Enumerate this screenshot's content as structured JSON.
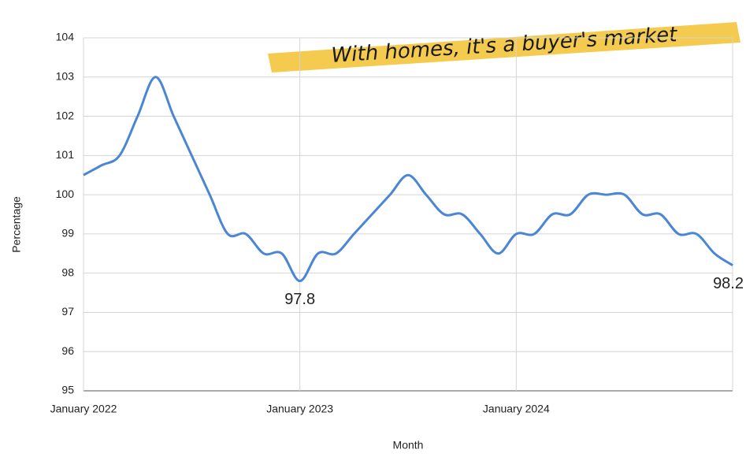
{
  "chart_data": {
    "type": "line",
    "annotation": "With homes, it's a buyer's market",
    "x_label": "Month",
    "y_label": "Percentage",
    "categories": [
      "January 2022",
      null,
      null,
      null,
      null,
      null,
      null,
      null,
      null,
      null,
      null,
      null,
      "January 2023",
      null,
      null,
      null,
      null,
      null,
      null,
      null,
      null,
      null,
      null,
      null,
      "January 2024",
      null,
      null,
      null,
      null,
      null,
      null,
      null,
      null,
      null,
      null,
      null,
      null
    ],
    "series": [
      {
        "color": "#4a86d4",
        "values": [
          100.5,
          100.75,
          101,
          102,
          103,
          102,
          101,
          100,
          99,
          99,
          98.5,
          98.5,
          97.8,
          98.5,
          98.5,
          99,
          99.5,
          100,
          100.5,
          100,
          99.5,
          99.5,
          99,
          98.5,
          99,
          99,
          99.5,
          99.5,
          100,
          100,
          100,
          99.5,
          99.5,
          99,
          99,
          98.5,
          98.2
        ]
      }
    ],
    "labeled_points": [
      12,
      36
    ],
    "ylim": [
      95,
      104
    ],
    "yticks": [
      95,
      96,
      97,
      98,
      99,
      100,
      101,
      102,
      103,
      104
    ],
    "grid": true,
    "smooth": true
  }
}
